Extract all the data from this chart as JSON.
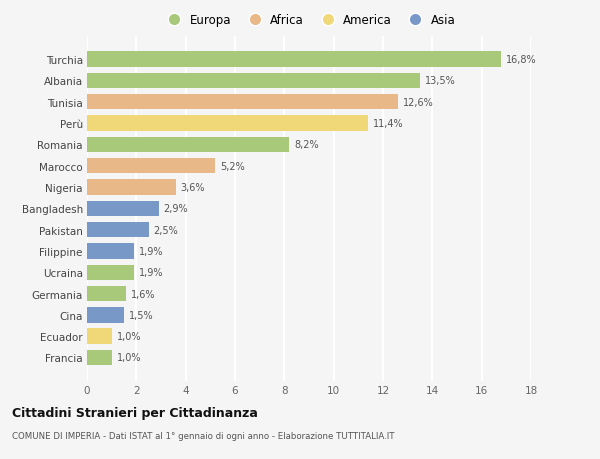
{
  "countries": [
    "Francia",
    "Ecuador",
    "Cina",
    "Germania",
    "Ucraina",
    "Filippine",
    "Pakistan",
    "Bangladesh",
    "Nigeria",
    "Marocco",
    "Romania",
    "Perù",
    "Tunisia",
    "Albania",
    "Turchia"
  ],
  "values": [
    1.0,
    1.0,
    1.5,
    1.6,
    1.9,
    1.9,
    2.5,
    2.9,
    3.6,
    5.2,
    8.2,
    11.4,
    12.6,
    13.5,
    16.8
  ],
  "labels": [
    "1,0%",
    "1,0%",
    "1,5%",
    "1,6%",
    "1,9%",
    "1,9%",
    "2,5%",
    "2,9%",
    "3,6%",
    "5,2%",
    "8,2%",
    "11,4%",
    "12,6%",
    "13,5%",
    "16,8%"
  ],
  "continents": [
    "Europa",
    "America",
    "Asia",
    "Europa",
    "Europa",
    "Asia",
    "Asia",
    "Asia",
    "Africa",
    "Africa",
    "Europa",
    "America",
    "Africa",
    "Europa",
    "Europa"
  ],
  "continent_colors": {
    "Europa": "#a8c87a",
    "Africa": "#e8b888",
    "America": "#f0d878",
    "Asia": "#7898c8"
  },
  "legend_order": [
    "Europa",
    "Africa",
    "America",
    "Asia"
  ],
  "title": "Cittadini Stranieri per Cittadinanza",
  "subtitle": "COMUNE DI IMPERIA - Dati ISTAT al 1° gennaio di ogni anno - Elaborazione TUTTITALIA.IT",
  "xlim": [
    0,
    18
  ],
  "xticks": [
    0,
    2,
    4,
    6,
    8,
    10,
    12,
    14,
    16,
    18
  ],
  "bg_color": "#f5f5f5",
  "grid_color": "#ffffff",
  "bar_height": 0.72
}
